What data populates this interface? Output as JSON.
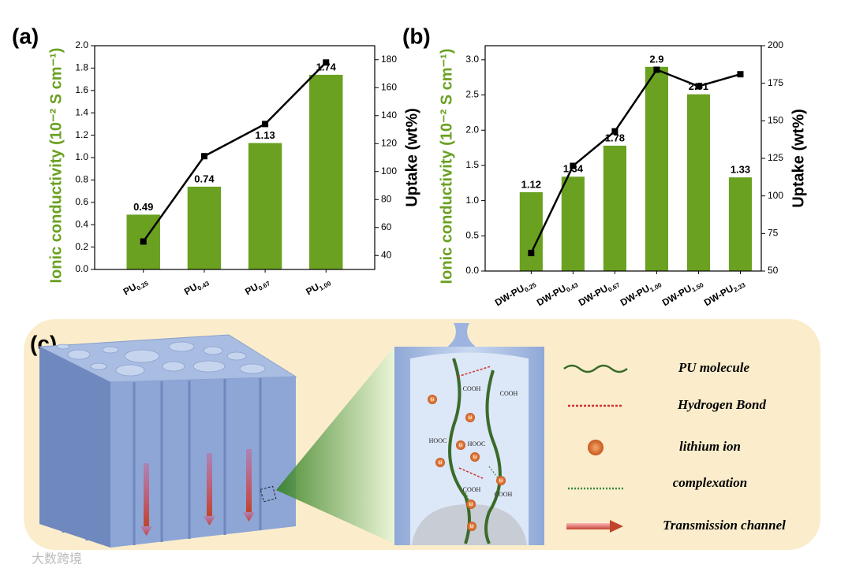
{
  "chart_data": [
    {
      "type": "bar",
      "panel_label": "(a)",
      "ylabel": "Ionic conductivity (10⁻² S cm⁻¹)",
      "y2label": "Uptake (wt%)",
      "categories": [
        "PU0.25",
        "PU0.43",
        "PU0.67",
        "PU1.00"
      ],
      "series": [
        {
          "type": "bar",
          "color": "#6aa121",
          "values": [
            0.49,
            0.74,
            1.13,
            1.74
          ]
        },
        {
          "type": "line",
          "axis": "y2",
          "color": "#000000",
          "values": [
            50,
            111,
            134,
            178
          ]
        }
      ],
      "ylim": [
        0,
        2.0
      ],
      "yticks": [
        {
          "value": 0,
          "label": "0.0"
        },
        0.2,
        0.4,
        0.6,
        0.8,
        {
          "value": 1,
          "label": "1.0"
        },
        1.2,
        1.4,
        1.6,
        1.8,
        {
          "value": 2,
          "label": "2.0"
        }
      ],
      "y2lim": [
        30,
        190
      ],
      "y2ticks": [
        40,
        60,
        80,
        100,
        120,
        140,
        160,
        180
      ]
    },
    {
      "type": "bar",
      "panel_label": "(b)",
      "ylabel": "Ionic conductivity (10⁻² S cm⁻¹)",
      "y2label": "Uptake (wt%)",
      "categories": [
        "DW-PU0.25",
        "DW-PU0.43",
        "DW-PU0.67",
        "DW-PU1.00",
        "DW-PU1.50",
        "DW-PU2.33"
      ],
      "series": [
        {
          "type": "bar",
          "color": "#6aa121",
          "values": [
            1.12,
            1.34,
            1.78,
            2.9,
            2.51,
            1.33
          ]
        },
        {
          "type": "line",
          "axis": "y2",
          "color": "#000000",
          "values": [
            62,
            120,
            143,
            184,
            173,
            181
          ]
        }
      ],
      "ylim": [
        0,
        3.2
      ],
      "yticks": [
        {
          "value": 0,
          "label": "0.0"
        },
        0.5,
        {
          "value": 1,
          "label": "1.0"
        },
        1.5,
        {
          "value": 2,
          "label": "2.0"
        },
        2.5,
        {
          "value": 3,
          "label": "3.0"
        }
      ],
      "y2lim": [
        50,
        200
      ],
      "y2ticks": [
        50,
        75,
        100,
        125,
        150,
        175,
        200
      ]
    }
  ],
  "diagram": {
    "panel_label": "(c)",
    "legend": [
      "PU molecule",
      "Hydrogen Bond",
      "lithium ion",
      "complexation",
      "Transmission channel"
    ],
    "group_labels": [
      "COOH",
      "COOH",
      "HOOC",
      "HOOC",
      "COOH",
      "COOH"
    ],
    "ion_label": "Li",
    "watermark": "大数跨境"
  }
}
